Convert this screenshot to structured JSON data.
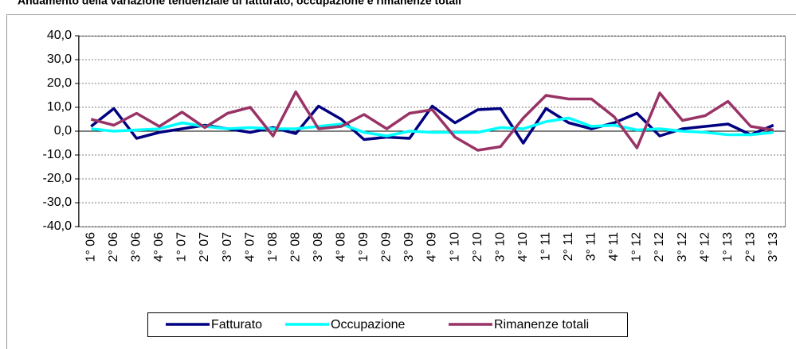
{
  "chart_data": {
    "type": "line",
    "title": "Andamento della variazione tendenziale di fatturato, occupazione e rimanenze totali",
    "categories": [
      "1° 06",
      "2° 06",
      "3° 06",
      "4° 06",
      "1° 07",
      "2° 07",
      "3° 07",
      "4° 07",
      "1° 08",
      "2° 08",
      "3° 08",
      "4° 08",
      "1° 09",
      "2° 09",
      "3° 09",
      "4° 09",
      "1° 10",
      "2° 10",
      "3° 10",
      "4° 10",
      "1° 11",
      "2° 11",
      "3° 11",
      "4° 11",
      "1° 12",
      "2° 12",
      "3° 12",
      "4° 12",
      "1° 13",
      "2° 13",
      "3° 13"
    ],
    "series": [
      {
        "name": "Fatturato",
        "color": "#000080",
        "values": [
          2,
          9.5,
          -3,
          -0.5,
          1,
          2.5,
          1,
          -0.5,
          1.5,
          -1,
          10.5,
          5,
          -3.5,
          -2.5,
          -3,
          10.5,
          3.5,
          9,
          9.5,
          -5,
          9.5,
          3.5,
          1,
          3.5,
          7.5,
          -2,
          1,
          2,
          3,
          -1.5,
          2.5
        ]
      },
      {
        "name": "Occupazione",
        "color": "#00ffff",
        "values": [
          1,
          0,
          0.5,
          1,
          3.5,
          2,
          1,
          1.5,
          1,
          1,
          2,
          3,
          -0.5,
          -2,
          0,
          -0.5,
          -0.5,
          -0.5,
          1.5,
          1,
          4,
          5.5,
          2,
          2.5,
          0.5,
          1,
          0,
          -0.5,
          -1.5,
          -1.5,
          -0.5
        ]
      },
      {
        "name": "Rimanenze totali",
        "color": "#993366",
        "values": [
          5,
          2.5,
          7.5,
          2,
          8,
          1.5,
          7.5,
          10,
          -2,
          16.5,
          1,
          2,
          7,
          1,
          7.5,
          9,
          -2.5,
          -8,
          -6.5,
          5.5,
          15,
          13.5,
          13.5,
          6,
          -7,
          16,
          4.5,
          6.5,
          12.5,
          2,
          0.5
        ]
      }
    ],
    "ylim": [
      -40,
      40
    ],
    "yticks": [
      {
        "value": -40,
        "label": "-40,0"
      },
      {
        "value": -30,
        "label": "-30,0"
      },
      {
        "value": -20,
        "label": "-20,0"
      },
      {
        "value": -10,
        "label": "-10,0"
      },
      {
        "value": 0,
        "label": "0,0"
      },
      {
        "value": 10,
        "label": "10,0"
      },
      {
        "value": 20,
        "label": "20,0"
      },
      {
        "value": 30,
        "label": "30,0"
      },
      {
        "value": 40,
        "label": "40,0"
      }
    ],
    "grid": true,
    "legend": "bottom"
  }
}
